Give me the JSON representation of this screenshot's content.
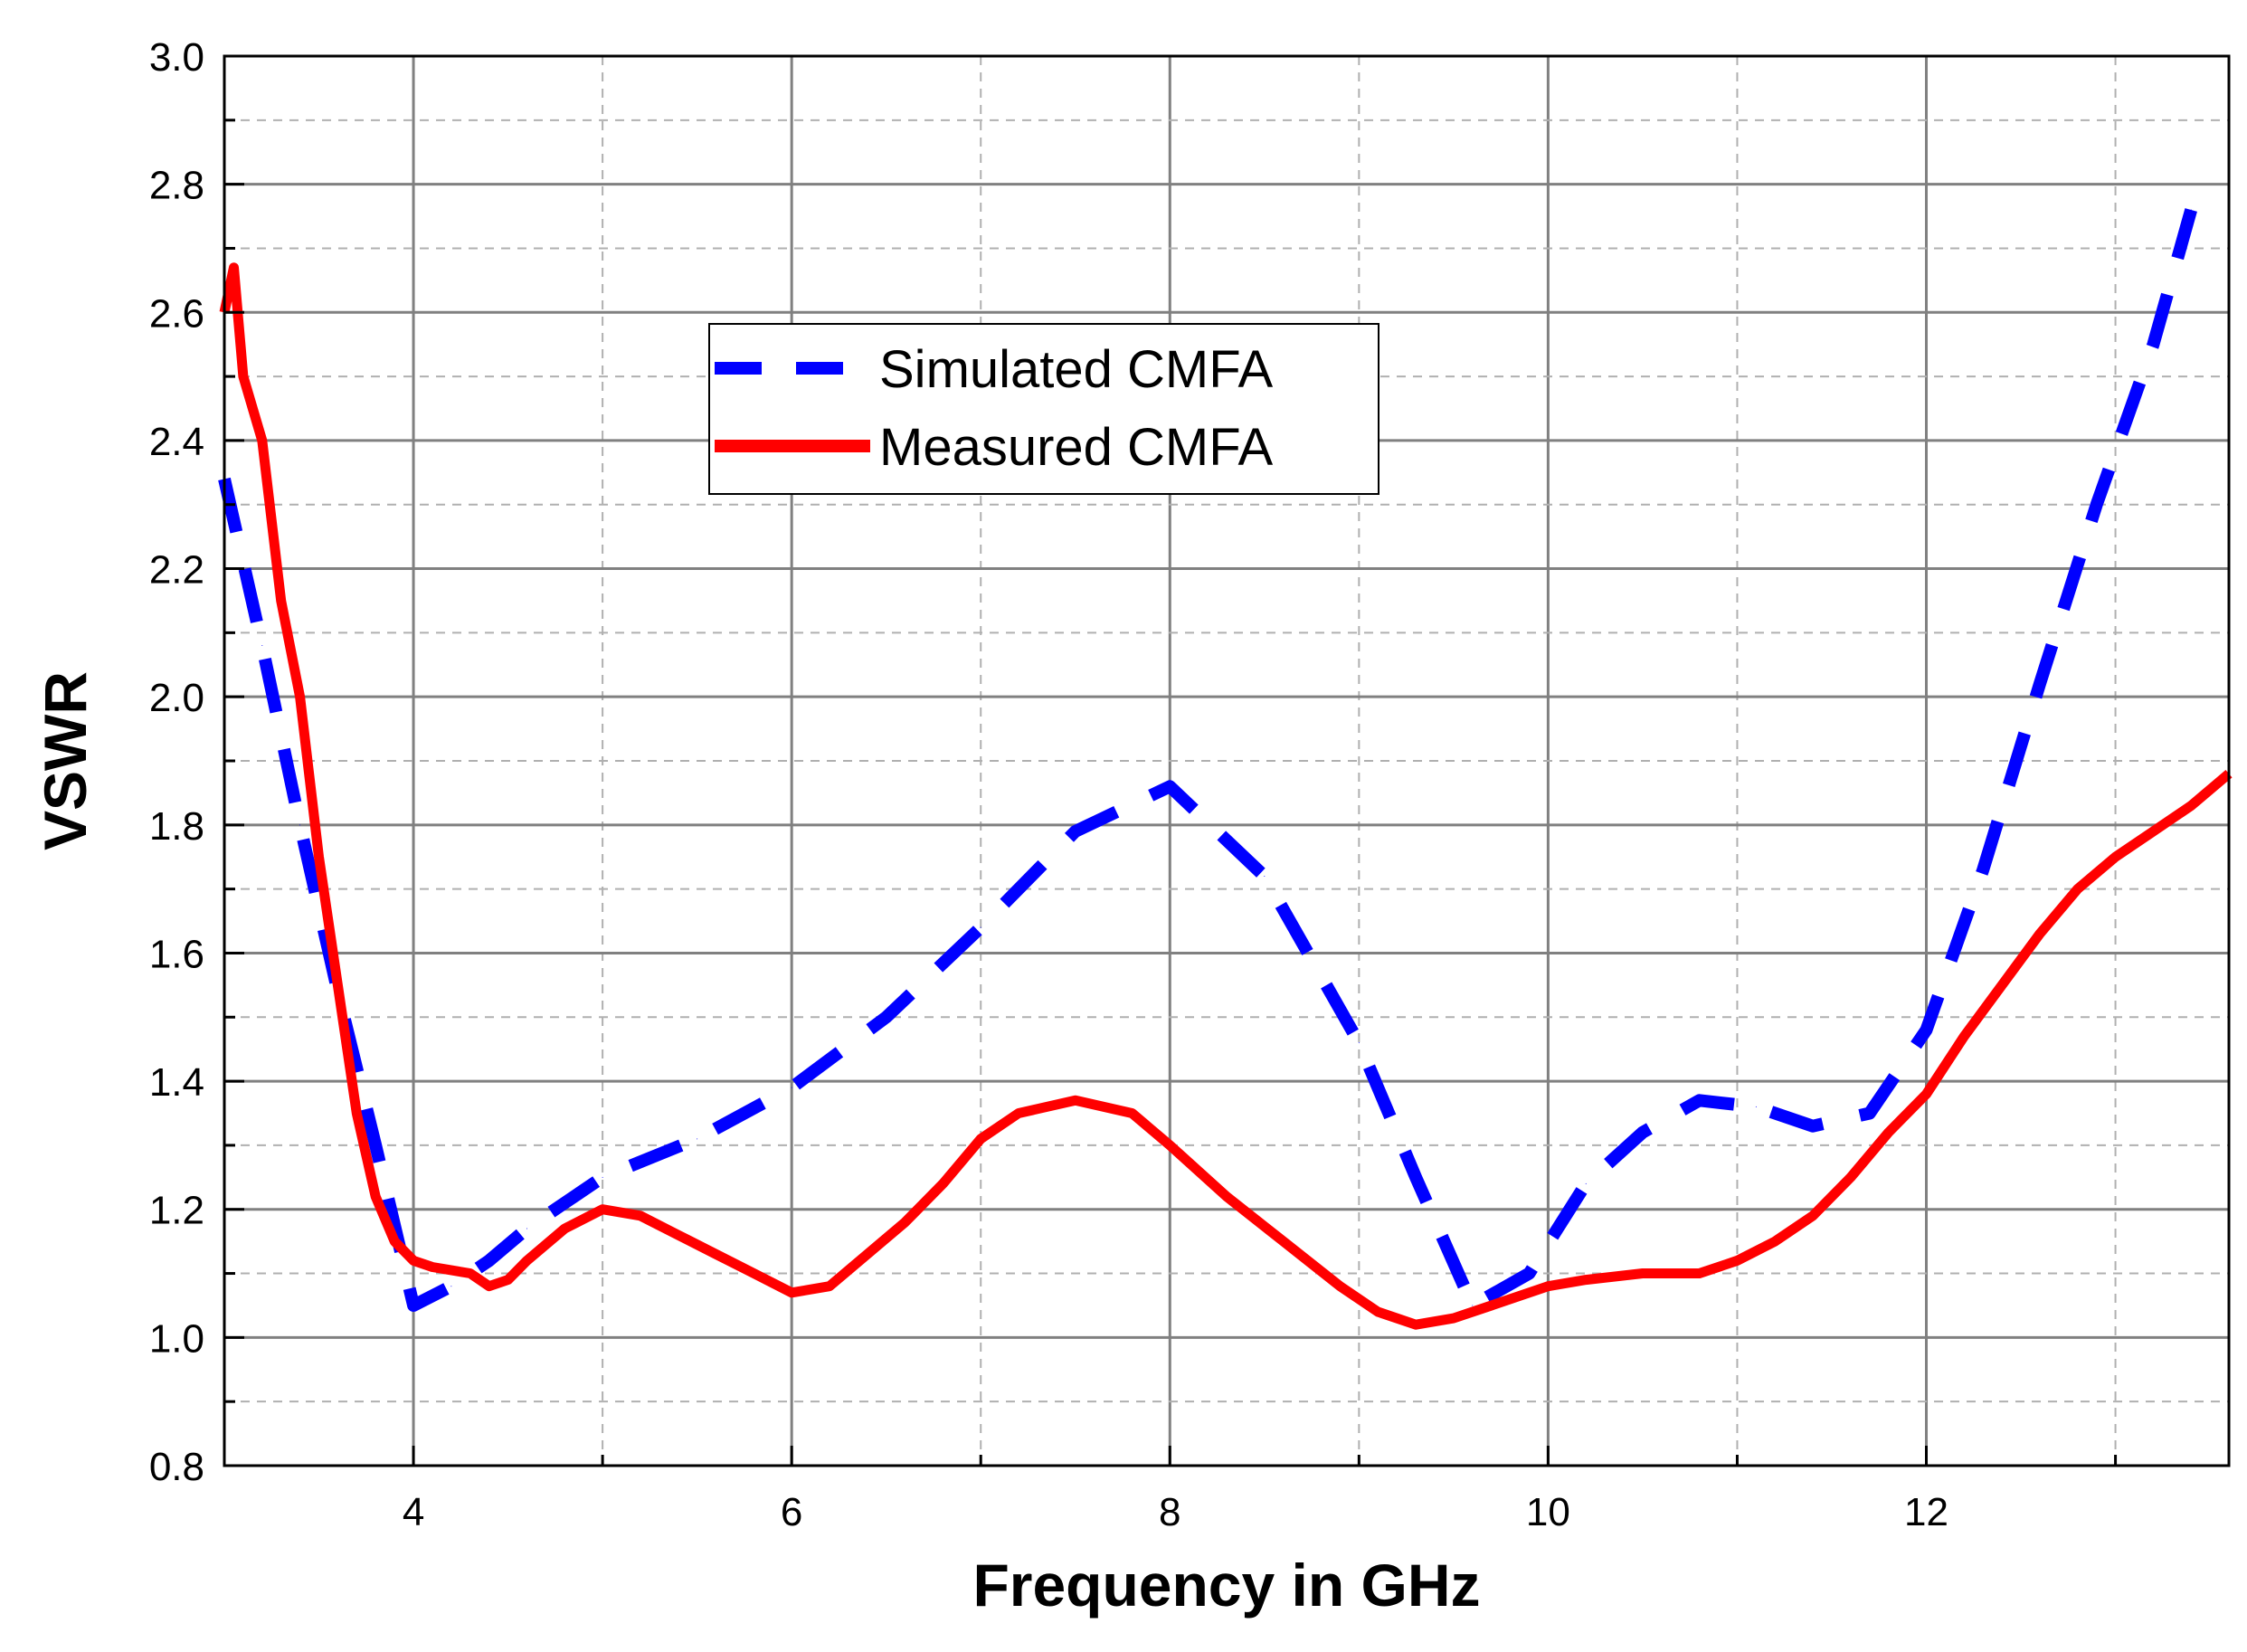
{
  "chart_data": {
    "type": "line",
    "title": "",
    "xlabel": "Frequency in GHz",
    "ylabel": "VSWR",
    "xlim": [
      3,
      13.6
    ],
    "ylim": [
      0.8,
      3.0
    ],
    "x_ticks": [
      4,
      6,
      8,
      10,
      12
    ],
    "y_ticks": [
      0.8,
      1.0,
      1.2,
      1.4,
      1.6,
      1.8,
      2.0,
      2.2,
      2.4,
      2.6,
      2.8,
      3.0
    ],
    "y_tick_labels": [
      "0.8",
      "1.0",
      "1.2",
      "1.4",
      "1.6",
      "1.8",
      "2.0",
      "2.2",
      "2.4",
      "2.6",
      "2.8",
      "3.0"
    ],
    "grid": true,
    "legend_position": "top-center",
    "series": [
      {
        "name": "Simulated CMFA",
        "color": "#0000ff",
        "style": "dashed",
        "x": [
          3.0,
          3.2,
          3.4,
          3.6,
          3.8,
          4.0,
          4.2,
          4.4,
          4.6,
          5.0,
          5.5,
          6.0,
          6.5,
          7.0,
          7.5,
          8.0,
          8.5,
          9.0,
          9.3,
          9.6,
          9.9,
          10.2,
          10.5,
          10.8,
          11.1,
          11.4,
          11.7,
          12.0,
          12.3,
          12.6,
          12.9,
          13.2,
          13.4
        ],
        "values": [
          2.34,
          2.08,
          1.8,
          1.54,
          1.3,
          1.05,
          1.08,
          1.12,
          1.17,
          1.25,
          1.31,
          1.39,
          1.5,
          1.64,
          1.79,
          1.86,
          1.72,
          1.46,
          1.25,
          1.05,
          1.1,
          1.24,
          1.32,
          1.37,
          1.36,
          1.33,
          1.35,
          1.48,
          1.73,
          2.02,
          2.3,
          2.55,
          2.76
        ]
      },
      {
        "name": "Measured CMFA",
        "color": "#ff0000",
        "style": "solid",
        "x": [
          3.0,
          3.05,
          3.1,
          3.2,
          3.3,
          3.4,
          3.5,
          3.6,
          3.7,
          3.8,
          3.9,
          4.0,
          4.1,
          4.3,
          4.4,
          4.5,
          4.6,
          4.8,
          5.0,
          5.2,
          5.4,
          5.6,
          5.8,
          6.0,
          6.2,
          6.4,
          6.6,
          6.8,
          7.0,
          7.2,
          7.5,
          7.8,
          8.0,
          8.3,
          8.6,
          8.9,
          9.1,
          9.3,
          9.5,
          9.7,
          10.0,
          10.2,
          10.5,
          10.8,
          11.0,
          11.2,
          11.4,
          11.6,
          11.8,
          12.0,
          12.2,
          12.4,
          12.6,
          12.8,
          13.0,
          13.2,
          13.4,
          13.6
        ],
        "values": [
          2.6,
          2.67,
          2.5,
          2.4,
          2.15,
          2.0,
          1.75,
          1.55,
          1.35,
          1.22,
          1.15,
          1.12,
          1.11,
          1.1,
          1.08,
          1.09,
          1.12,
          1.17,
          1.2,
          1.19,
          1.16,
          1.13,
          1.1,
          1.07,
          1.08,
          1.13,
          1.18,
          1.24,
          1.31,
          1.35,
          1.37,
          1.35,
          1.3,
          1.22,
          1.15,
          1.08,
          1.04,
          1.02,
          1.03,
          1.05,
          1.08,
          1.09,
          1.1,
          1.1,
          1.12,
          1.15,
          1.19,
          1.25,
          1.32,
          1.38,
          1.47,
          1.55,
          1.63,
          1.7,
          1.75,
          1.79,
          1.83,
          1.88
        ]
      }
    ]
  }
}
